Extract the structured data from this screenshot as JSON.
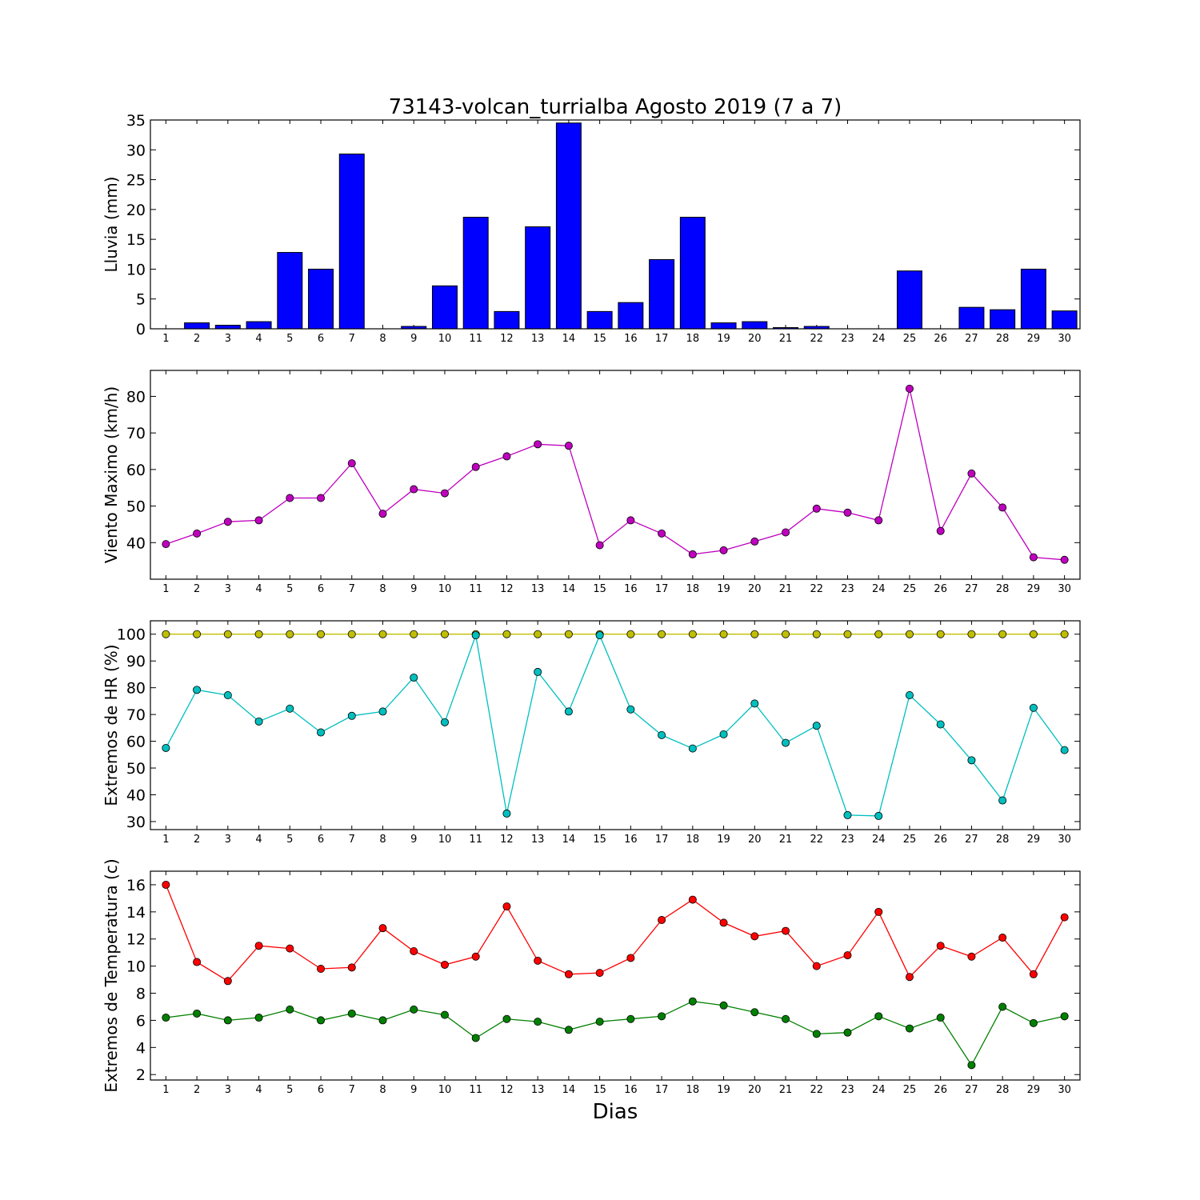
{
  "figure": {
    "title": "73143-volcan_turrialba Agosto 2019  (7 a 7)",
    "xlabel": "Dias"
  },
  "chart_data": [
    {
      "type": "bar",
      "ylabel": "Lluvia (mm)",
      "categories": [
        "1",
        "2",
        "3",
        "4",
        "5",
        "6",
        "7",
        "8",
        "9",
        "10",
        "11",
        "12",
        "13",
        "14",
        "15",
        "16",
        "17",
        "18",
        "19",
        "20",
        "21",
        "22",
        "23",
        "24",
        "25",
        "26",
        "27",
        "28",
        "29",
        "30"
      ],
      "series": [
        {
          "values": [
            0,
            1.0,
            0.6,
            1.2,
            12.8,
            10.0,
            29.3,
            0,
            0.4,
            7.2,
            18.7,
            2.9,
            17.1,
            34.5,
            2.9,
            4.4,
            11.6,
            18.7,
            1.0,
            1.2,
            0.2,
            0.4,
            0,
            0,
            9.7,
            0,
            3.6,
            3.2,
            10.0,
            3.0
          ],
          "color": "#0000ff"
        }
      ],
      "ylim": [
        0,
        35
      ],
      "yticks": [
        0,
        5,
        10,
        15,
        20,
        25,
        30,
        35
      ]
    },
    {
      "type": "line",
      "ylabel": "Viento Maximo (km/h)",
      "x": [
        1,
        2,
        3,
        4,
        5,
        6,
        7,
        8,
        9,
        10,
        11,
        12,
        13,
        14,
        15,
        16,
        17,
        18,
        19,
        20,
        21,
        22,
        23,
        24,
        25,
        26,
        27,
        28,
        29,
        30
      ],
      "series": [
        {
          "values": [
            39.6,
            42.5,
            45.7,
            46.1,
            52.2,
            52.2,
            61.7,
            47.9,
            54.6,
            53.5,
            60.7,
            63.6,
            66.9,
            66.5,
            39.3,
            46.1,
            42.5,
            36.8,
            37.9,
            40.3,
            42.8,
            49.3,
            48.2,
            46.1,
            82.1,
            43.2,
            58.9,
            49.6,
            36.0,
            35.3
          ],
          "color": "#bf00bf"
        }
      ],
      "ylim": [
        30,
        87.1
      ],
      "yticks": [
        40,
        50,
        60,
        70,
        80
      ]
    },
    {
      "type": "line",
      "ylabel": "Extremos de HR (%)",
      "x": [
        1,
        2,
        3,
        4,
        5,
        6,
        7,
        8,
        9,
        10,
        11,
        12,
        13,
        14,
        15,
        16,
        17,
        18,
        19,
        20,
        21,
        22,
        23,
        24,
        25,
        26,
        27,
        28,
        29,
        30
      ],
      "series": [
        {
          "values": [
            100,
            100,
            100,
            100,
            100,
            100,
            100,
            100,
            100,
            100,
            100,
            100,
            100,
            100,
            100,
            100,
            100,
            100,
            100,
            100,
            100,
            100,
            100,
            100,
            100,
            100,
            100,
            100,
            100,
            100
          ],
          "color": "#bfbf00"
        },
        {
          "values": [
            57.5,
            79.2,
            77.2,
            67.4,
            72.2,
            63.3,
            69.5,
            71.1,
            83.8,
            67.1,
            99.6,
            33.0,
            85.9,
            71.1,
            99.6,
            71.9,
            62.3,
            57.3,
            62.6,
            74.1,
            59.4,
            65.8,
            32.4,
            32.1,
            77.2,
            66.3,
            52.9,
            37.9,
            72.5,
            56.7
          ],
          "color": "#00bfbf"
        }
      ],
      "ylim": [
        27,
        105
      ],
      "yticks": [
        30,
        40,
        50,
        60,
        70,
        80,
        90,
        100
      ]
    },
    {
      "type": "line",
      "ylabel": "Extremos de Temperatura (c)",
      "x": [
        1,
        2,
        3,
        4,
        5,
        6,
        7,
        8,
        9,
        10,
        11,
        12,
        13,
        14,
        15,
        16,
        17,
        18,
        19,
        20,
        21,
        22,
        23,
        24,
        25,
        26,
        27,
        28,
        29,
        30
      ],
      "series": [
        {
          "values": [
            16.0,
            10.3,
            8.9,
            11.5,
            11.3,
            9.8,
            9.9,
            12.8,
            11.1,
            10.1,
            10.7,
            14.4,
            10.4,
            9.4,
            9.5,
            10.6,
            13.4,
            14.9,
            13.2,
            12.2,
            12.6,
            10.0,
            10.8,
            14.0,
            9.2,
            11.5,
            10.7,
            12.1,
            9.4,
            13.6
          ],
          "color": "#ff0000"
        },
        {
          "values": [
            6.2,
            6.5,
            6.0,
            6.2,
            6.8,
            6.0,
            6.5,
            6.0,
            6.8,
            6.4,
            4.7,
            6.1,
            5.9,
            5.3,
            5.9,
            6.1,
            6.3,
            7.4,
            7.1,
            6.6,
            6.1,
            5.0,
            5.1,
            6.3,
            5.4,
            6.2,
            2.7,
            7.0,
            5.8,
            6.3
          ],
          "color": "#008000"
        }
      ],
      "ylim": [
        1.6,
        17.0
      ],
      "yticks": [
        2,
        4,
        6,
        8,
        10,
        12,
        14,
        16
      ]
    }
  ]
}
